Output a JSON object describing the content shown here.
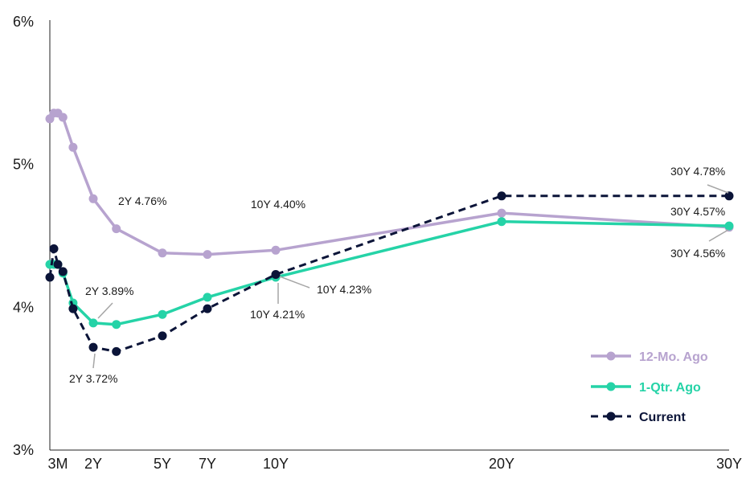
{
  "chart_data": {
    "type": "line",
    "title": "",
    "xlabel": "",
    "ylabel": "",
    "ylim": [
      3,
      6
    ],
    "y_ticks": [
      {
        "value": 3,
        "label": "3%"
      },
      {
        "value": 4,
        "label": "4%"
      },
      {
        "value": 5,
        "label": "5%"
      },
      {
        "value": 6,
        "label": "6%"
      }
    ],
    "x_ticks": [
      {
        "x": 3,
        "label": "3M"
      },
      {
        "x": 24,
        "label": "2Y"
      },
      {
        "x": 60,
        "label": "5Y"
      },
      {
        "x": 84,
        "label": "7Y"
      },
      {
        "x": 120,
        "label": "10Y"
      },
      {
        "x": 240,
        "label": "20Y"
      },
      {
        "x": 360,
        "label": "30Y"
      }
    ],
    "x_unit": "months to maturity",
    "grid": false,
    "legend_position": "bottom-right",
    "series": [
      {
        "name": "12-Mo. Ago",
        "color": "#b7a3cf",
        "dash": false,
        "points": [
          [
            1,
            5.32
          ],
          [
            2,
            5.36
          ],
          [
            3,
            5.36
          ],
          [
            6,
            5.33
          ],
          [
            12,
            5.12
          ],
          [
            24,
            4.76
          ],
          [
            36,
            4.55
          ],
          [
            60,
            4.38
          ],
          [
            84,
            4.37
          ],
          [
            120,
            4.4
          ],
          [
            240,
            4.66
          ],
          [
            360,
            4.56
          ]
        ]
      },
      {
        "name": "1-Qtr. Ago",
        "color": "#25d3a7",
        "dash": false,
        "points": [
          [
            1,
            4.3
          ],
          [
            2,
            4.3
          ],
          [
            3,
            4.3
          ],
          [
            6,
            4.24
          ],
          [
            12,
            4.03
          ],
          [
            24,
            3.89
          ],
          [
            36,
            3.88
          ],
          [
            60,
            3.95
          ],
          [
            84,
            4.07
          ],
          [
            120,
            4.21
          ],
          [
            240,
            4.6
          ],
          [
            360,
            4.57
          ]
        ]
      },
      {
        "name": "Current",
        "color": "#0b1438",
        "dash": true,
        "points": [
          [
            1,
            4.21
          ],
          [
            2,
            4.41
          ],
          [
            3,
            4.3
          ],
          [
            6,
            4.25
          ],
          [
            12,
            3.99
          ],
          [
            24,
            3.72
          ],
          [
            36,
            3.69
          ],
          [
            60,
            3.8
          ],
          [
            84,
            3.99
          ],
          [
            120,
            4.23
          ],
          [
            240,
            4.78
          ],
          [
            360,
            4.78
          ]
        ]
      }
    ],
    "annotations": [
      {
        "text": "2Y 4.76%",
        "series": "12-Mo. Ago",
        "x": 24
      },
      {
        "text": "10Y 4.40%",
        "series": "12-Mo. Ago",
        "x": 120
      },
      {
        "text": "2Y 3.89%",
        "series": "1-Qtr. Ago",
        "x": 24
      },
      {
        "text": "2Y 3.72%",
        "series": "Current",
        "x": 24
      },
      {
        "text": "10Y 4.23%",
        "series": "Current",
        "x": 120
      },
      {
        "text": "10Y 4.21%",
        "series": "1-Qtr. Ago",
        "x": 120
      },
      {
        "text": "30Y 4.78%",
        "series": "Current",
        "x": 360
      },
      {
        "text": "30Y 4.57%",
        "series": "1-Qtr. Ago",
        "x": 360
      },
      {
        "text": "30Y 4.56%",
        "series": "12-Mo. Ago",
        "x": 360
      }
    ]
  }
}
